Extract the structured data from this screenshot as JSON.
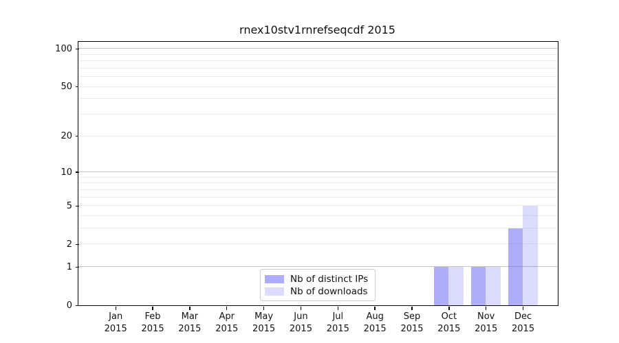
{
  "title": "rnex10stv1rnrefseqcdf 2015",
  "chart_data": {
    "type": "bar",
    "title": "rnex10stv1rnrefseqcdf 2015",
    "categories": [
      "Jan",
      "Feb",
      "Mar",
      "Apr",
      "May",
      "Jun",
      "Jul",
      "Aug",
      "Sep",
      "Oct",
      "Nov",
      "Dec"
    ],
    "x_sublabel": "2015",
    "series": [
      {
        "name": "Nb of distinct IPs",
        "color": "rgba(105,105,245,0.55)",
        "values": [
          0,
          0,
          0,
          0,
          0,
          0,
          0,
          0,
          0,
          1,
          1,
          3
        ]
      },
      {
        "name": "Nb of downloads",
        "color": "rgba(105,105,245,0.24)",
        "values": [
          0,
          0,
          0,
          0,
          0,
          0,
          0,
          0,
          0,
          1,
          1,
          5
        ]
      }
    ],
    "xlabel": "",
    "ylabel": "",
    "yscale": "log1p",
    "ylim": [
      0,
      113
    ],
    "y_ticks": [
      0,
      1,
      2,
      5,
      10,
      20,
      50,
      100
    ],
    "y_major_gridlines": [
      1,
      10,
      100
    ],
    "y_minor_gridlines": [
      2,
      3,
      4,
      5,
      6,
      7,
      8,
      9,
      20,
      30,
      40,
      50,
      60,
      70,
      80,
      90
    ],
    "grid": "horizontal",
    "legend_position": "inside-bottom-center"
  },
  "colors": {
    "major_grid": "#c4c4c4",
    "minor_grid": "#ececec",
    "axis": "#000000",
    "background": "#ffffff"
  },
  "legend": {
    "items": [
      {
        "label": "Nb of distinct IPs"
      },
      {
        "label": "Nb of downloads"
      }
    ]
  }
}
